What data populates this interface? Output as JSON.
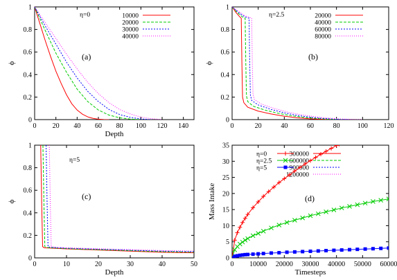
{
  "colors": {
    "red": "#ff0000",
    "green": "#00cc00",
    "blue": "#0000ff",
    "magenta": "#ff00ff",
    "blue_marker": "#0000ff"
  },
  "chart_data": [
    {
      "type": "line",
      "panel": "(a)",
      "annotation": "η=0",
      "xlabel": "Depth",
      "ylabel": "ϕ",
      "xlim": [
        0,
        150
      ],
      "ylim": [
        0,
        1
      ],
      "xticks": [
        0,
        20,
        40,
        60,
        80,
        100,
        120,
        140
      ],
      "yticks": [
        0,
        0.2,
        0.4,
        0.6,
        0.8,
        1
      ],
      "xtick_labels": [
        "0",
        "20",
        "40",
        "60",
        "80",
        "100",
        "120",
        "140"
      ],
      "ytick_labels": [
        "0",
        "0.2",
        "0.4",
        "0.6",
        "0.8",
        "1"
      ],
      "legend_position": "top-right",
      "series": [
        {
          "name": "10000",
          "color": "#ff0000",
          "dash": "solid",
          "x": [
            0,
            5,
            10,
            15,
            20,
            25,
            30,
            35,
            40,
            45,
            50,
            55,
            60,
            65,
            70
          ],
          "y": [
            1.0,
            0.85,
            0.7,
            0.56,
            0.43,
            0.32,
            0.22,
            0.14,
            0.085,
            0.048,
            0.024,
            0.011,
            0.004,
            0.001,
            0
          ]
        },
        {
          "name": "20000",
          "color": "#00cc00",
          "dash": "4,2",
          "x": [
            0,
            10,
            20,
            30,
            40,
            50,
            60,
            70,
            80,
            90,
            100
          ],
          "y": [
            1.0,
            0.79,
            0.59,
            0.42,
            0.27,
            0.16,
            0.085,
            0.04,
            0.016,
            0.005,
            0
          ]
        },
        {
          "name": "30000",
          "color": "#0000ff",
          "dash": "2,2",
          "x": [
            0,
            10,
            20,
            30,
            40,
            50,
            60,
            70,
            80,
            90,
            100,
            110
          ],
          "y": [
            1.0,
            0.83,
            0.67,
            0.51,
            0.37,
            0.25,
            0.16,
            0.09,
            0.045,
            0.02,
            0.006,
            0
          ]
        },
        {
          "name": "40000",
          "color": "#ff00ff",
          "dash": "1,2",
          "x": [
            0,
            10,
            20,
            30,
            40,
            50,
            60,
            70,
            80,
            90,
            100,
            110,
            120
          ],
          "y": [
            1.0,
            0.86,
            0.72,
            0.58,
            0.45,
            0.33,
            0.23,
            0.15,
            0.09,
            0.05,
            0.022,
            0.008,
            0
          ]
        }
      ]
    },
    {
      "type": "line",
      "panel": "(b)",
      "annotation": "η=2.5",
      "xlabel": "",
      "ylabel": "ϕ",
      "xlim": [
        0,
        120
      ],
      "ylim": [
        0,
        1
      ],
      "xticks": [
        0,
        20,
        40,
        60,
        80,
        100,
        120
      ],
      "yticks": [
        0,
        0.2,
        0.4,
        0.6,
        0.8,
        1
      ],
      "xtick_labels": [
        "0",
        "20",
        "40",
        "60",
        "80",
        "100",
        "120"
      ],
      "ytick_labels": [
        "0",
        "0.2",
        "0.4",
        "0.6",
        "0.8",
        "1"
      ],
      "legend_position": "top-right",
      "series": [
        {
          "name": "20000",
          "color": "#ff0000",
          "dash": "solid",
          "x": [
            0,
            3,
            6,
            7,
            7.5,
            8,
            9,
            12,
            20,
            30,
            40,
            50,
            60,
            70,
            80
          ],
          "y": [
            1.0,
            0.95,
            0.91,
            0.9,
            0.5,
            0.2,
            0.15,
            0.11,
            0.075,
            0.05,
            0.03,
            0.016,
            0.007,
            0.002,
            0
          ]
        },
        {
          "name": "40000",
          "color": "#00cc00",
          "dash": "4,2",
          "x": [
            0,
            4,
            8,
            10,
            10.5,
            11,
            12,
            16,
            25,
            35,
            45,
            55,
            65,
            75,
            85
          ],
          "y": [
            1.0,
            0.95,
            0.91,
            0.9,
            0.5,
            0.21,
            0.16,
            0.12,
            0.085,
            0.057,
            0.035,
            0.02,
            0.01,
            0.003,
            0
          ]
        },
        {
          "name": "60000",
          "color": "#0000ff",
          "dash": "2,2",
          "x": [
            0,
            5,
            10,
            13,
            13.5,
            14,
            15,
            20,
            30,
            40,
            50,
            60,
            70,
            80,
            90
          ],
          "y": [
            1.0,
            0.95,
            0.91,
            0.9,
            0.5,
            0.22,
            0.17,
            0.13,
            0.09,
            0.06,
            0.037,
            0.021,
            0.01,
            0.003,
            0
          ]
        },
        {
          "name": "80000",
          "color": "#ff00ff",
          "dash": "1,2",
          "x": [
            0,
            5,
            10,
            15,
            15.5,
            16,
            17,
            22,
            32,
            42,
            52,
            62,
            72,
            82,
            92,
            100
          ],
          "y": [
            1.0,
            0.96,
            0.92,
            0.9,
            0.5,
            0.23,
            0.18,
            0.14,
            0.1,
            0.068,
            0.045,
            0.028,
            0.015,
            0.006,
            0.002,
            0
          ]
        }
      ]
    },
    {
      "type": "line",
      "panel": "(c)",
      "annotation": "η=5",
      "xlabel": "Depth",
      "ylabel": "ϕ",
      "xlim": [
        0,
        50
      ],
      "ylim": [
        0,
        1
      ],
      "xticks": [
        0,
        10,
        20,
        30,
        40,
        50
      ],
      "yticks": [
        0,
        0.2,
        0.4,
        0.6,
        0.8,
        1
      ],
      "xtick_labels": [
        "0",
        "10",
        "20",
        "30",
        "40",
        "50"
      ],
      "ytick_labels": [
        "0",
        "0.2",
        "0.4",
        "0.6",
        "0.8",
        "1"
      ],
      "legend_position": "top-right",
      "series": [
        {
          "name": "300000",
          "color": "#ff0000",
          "dash": "solid",
          "x": [
            1.9,
            2.2,
            2.5,
            3,
            5,
            10,
            20,
            30,
            40,
            50
          ],
          "y": [
            1.0,
            0.5,
            0.1,
            0.09,
            0.087,
            0.08,
            0.07,
            0.06,
            0.05,
            0.045
          ]
        },
        {
          "name": "600000",
          "color": "#00cc00",
          "dash": "4,2",
          "x": [
            2.6,
            2.9,
            3.2,
            3.7,
            6,
            10,
            20,
            30,
            40,
            50
          ],
          "y": [
            1.0,
            0.5,
            0.1,
            0.092,
            0.088,
            0.082,
            0.073,
            0.064,
            0.055,
            0.05
          ]
        },
        {
          "name": "900000",
          "color": "#0000ff",
          "dash": "2,2",
          "x": [
            3.6,
            3.9,
            4.2,
            4.7,
            7,
            10,
            20,
            30,
            40,
            50
          ],
          "y": [
            1.0,
            0.5,
            0.1,
            0.095,
            0.09,
            0.086,
            0.077,
            0.068,
            0.06,
            0.055
          ]
        },
        {
          "name": "1200000",
          "color": "#ff00ff",
          "dash": "1,2",
          "x": [
            4.6,
            4.9,
            5.2,
            5.7,
            8,
            10,
            20,
            30,
            40,
            50
          ],
          "y": [
            1.0,
            0.5,
            0.1,
            0.097,
            0.092,
            0.089,
            0.081,
            0.073,
            0.065,
            0.06
          ]
        }
      ]
    },
    {
      "type": "line",
      "panel": "(d)",
      "annotation": "",
      "xlabel": "Timesteps",
      "ylabel": "Mass Intake",
      "xlim": [
        0,
        60000
      ],
      "ylim": [
        0,
        35
      ],
      "xticks": [
        0,
        10000,
        20000,
        30000,
        40000,
        50000,
        60000
      ],
      "yticks": [
        0,
        5,
        10,
        15,
        20,
        25,
        30,
        35
      ],
      "xtick_labels": [
        "0",
        "10000",
        "20000",
        "30000",
        "40000",
        "50000",
        "60000"
      ],
      "ytick_labels": [
        "0",
        "5",
        "10",
        "15",
        "20",
        "25",
        "30",
        "35"
      ],
      "legend_position": "top-left",
      "series": [
        {
          "name": "η=0",
          "color": "#ff0000",
          "marker": "plus",
          "x": [
            0,
            1000,
            2000,
            3000,
            4000,
            5000,
            6000,
            8000,
            10000,
            12000,
            14000,
            16000,
            18000,
            20000,
            22000,
            24000,
            26000,
            28000,
            30000,
            32000,
            34000,
            36000,
            38000,
            40000,
            41000
          ],
          "y": [
            0,
            5.5,
            7.8,
            9.5,
            11.0,
            12.3,
            13.5,
            15.6,
            17.4,
            19.1,
            20.6,
            22.0,
            23.4,
            24.6,
            25.8,
            27.0,
            28.1,
            29.2,
            30.2,
            31.2,
            32.2,
            33.1,
            34.0,
            34.9,
            35.3
          ]
        },
        {
          "name": "η=2.5",
          "color": "#00cc00",
          "marker": "cross",
          "x": [
            0,
            1000,
            2000,
            3000,
            4000,
            5000,
            6000,
            8000,
            10000,
            12000,
            15000,
            18000,
            21000,
            24000,
            27000,
            30000,
            33000,
            36000,
            39000,
            42000,
            45000,
            48000,
            51000,
            54000,
            57000,
            60000
          ],
          "y": [
            0,
            2.5,
            3.5,
            4.3,
            4.9,
            5.5,
            6.0,
            6.9,
            7.6,
            8.3,
            9.3,
            10.2,
            11.0,
            11.7,
            12.4,
            13.1,
            13.7,
            14.3,
            14.9,
            15.5,
            16.0,
            16.5,
            17.0,
            17.5,
            17.9,
            18.3
          ]
        },
        {
          "name": "η=5",
          "color": "#0000ff",
          "marker": "square",
          "x": [
            0,
            1000,
            2000,
            3000,
            4000,
            5000,
            6000,
            8000,
            10000,
            12000,
            15000,
            18000,
            21000,
            24000,
            27000,
            30000,
            33000,
            36000,
            39000,
            42000,
            45000,
            48000,
            51000,
            54000,
            57000,
            60000
          ],
          "y": [
            0,
            0.5,
            0.65,
            0.8,
            0.9,
            1.0,
            1.05,
            1.15,
            1.25,
            1.35,
            1.5,
            1.6,
            1.75,
            1.85,
            1.95,
            2.05,
            2.15,
            2.25,
            2.35,
            2.45,
            2.55,
            2.65,
            2.75,
            2.85,
            2.95,
            3.05
          ]
        }
      ]
    }
  ]
}
